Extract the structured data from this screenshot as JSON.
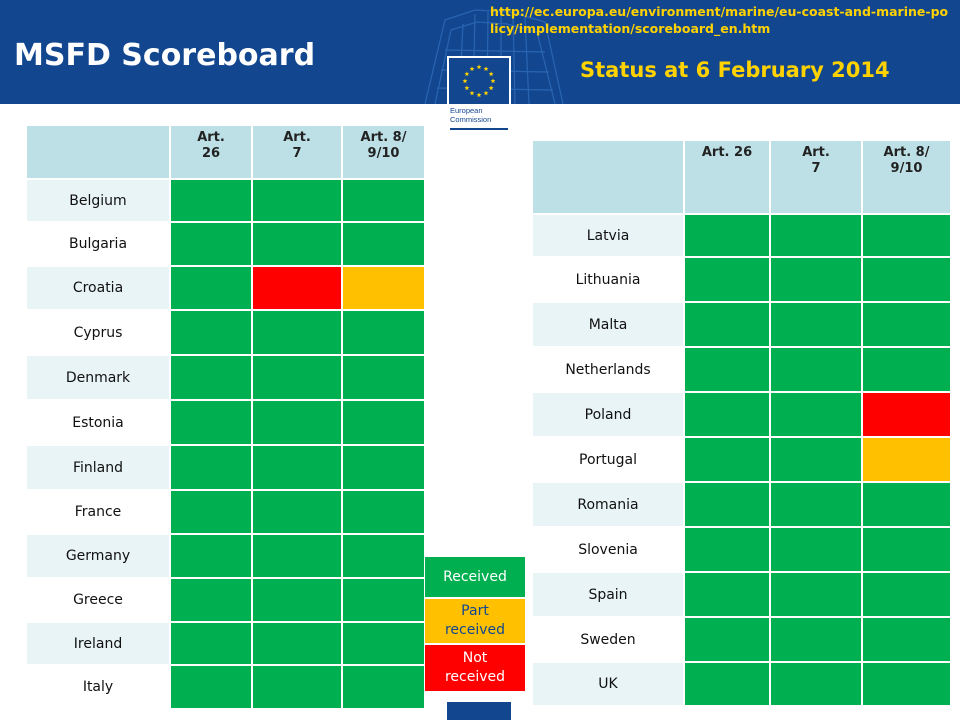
{
  "header": {
    "title": "MSFD Scoreboard",
    "url": "http://ec.europa.eu/environment/marine/eu-coast-and-marine-policy/implementation/scoreboard_en.htm",
    "status": "Status at 6 February 2014",
    "logo_text_1": "European",
    "logo_text_2": "Commission"
  },
  "colors": {
    "received": "#00b050",
    "part_received": "#ffc000",
    "not_received": "#ff0000",
    "brand_blue": "#124790",
    "accent_yellow": "#ffd200"
  },
  "left_table": {
    "headers": [
      "",
      "Art.\n26",
      "Art.\n7",
      "Art. 8/\n9/10"
    ],
    "rows": [
      {
        "country": "Belgium",
        "status": [
          "received",
          "received",
          "received"
        ]
      },
      {
        "country": "Bulgaria",
        "status": [
          "received",
          "received",
          "received"
        ]
      },
      {
        "country": "Croatia",
        "status": [
          "received",
          "not_received",
          "part_received"
        ]
      },
      {
        "country": "Cyprus",
        "status": [
          "received",
          "received",
          "received"
        ]
      },
      {
        "country": "Denmark",
        "status": [
          "received",
          "received",
          "received"
        ]
      },
      {
        "country": "Estonia",
        "status": [
          "received",
          "received",
          "received"
        ]
      },
      {
        "country": "Finland",
        "status": [
          "received",
          "received",
          "received"
        ]
      },
      {
        "country": "France",
        "status": [
          "received",
          "received",
          "received"
        ]
      },
      {
        "country": "Germany",
        "status": [
          "received",
          "received",
          "received"
        ]
      },
      {
        "country": "Greece",
        "status": [
          "received",
          "received",
          "received"
        ]
      },
      {
        "country": "Ireland",
        "status": [
          "received",
          "received",
          "received"
        ]
      },
      {
        "country": "Italy",
        "status": [
          "received",
          "received",
          "received"
        ]
      }
    ]
  },
  "right_table": {
    "headers": [
      "",
      "Art. 26",
      "Art.\n7",
      "Art. 8/\n9/10"
    ],
    "rows": [
      {
        "country": "Latvia",
        "status": [
          "received",
          "received",
          "received"
        ]
      },
      {
        "country": "Lithuania",
        "status": [
          "received",
          "received",
          "received"
        ]
      },
      {
        "country": "Malta",
        "status": [
          "received",
          "received",
          "received"
        ]
      },
      {
        "country": "Netherlands",
        "status": [
          "received",
          "received",
          "received"
        ]
      },
      {
        "country": "Poland",
        "status": [
          "received",
          "received",
          "not_received"
        ]
      },
      {
        "country": "Portugal",
        "status": [
          "received",
          "received",
          "part_received"
        ]
      },
      {
        "country": "Romania",
        "status": [
          "received",
          "received",
          "received"
        ]
      },
      {
        "country": "Slovenia",
        "status": [
          "received",
          "received",
          "received"
        ]
      },
      {
        "country": "Spain",
        "status": [
          "received",
          "received",
          "received"
        ]
      },
      {
        "country": "Sweden",
        "status": [
          "received",
          "received",
          "received"
        ]
      },
      {
        "country": "UK",
        "status": [
          "received",
          "received",
          "received"
        ]
      }
    ]
  },
  "legend": {
    "received": "Received",
    "part_received": "Part\nreceived",
    "not_received": "Not\nreceived"
  }
}
